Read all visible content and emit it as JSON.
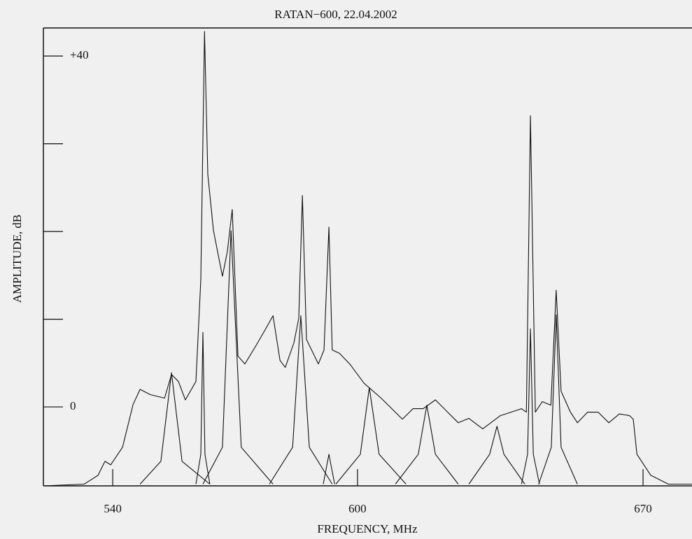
{
  "chart_data": {
    "type": "line",
    "title": "RATAN−600, 22.04.2002",
    "x_label": "FREQUENCY, MHz",
    "y_label": "AMPLITUDE, dB",
    "xlim": [
      523,
      682
    ],
    "ylim": [
      -9,
      43.2
    ],
    "xticks": [
      540,
      600,
      670
    ],
    "yticks": [
      0,
      {
        "value": 10,
        "label": null
      },
      {
        "value": 20,
        "label": null
      },
      {
        "value": 30,
        "label": null
      },
      {
        "value": 40,
        "label": "+40"
      }
    ],
    "color": "#111111",
    "series": [
      {
        "x": [
          523.0,
          533.0,
          536.4,
          538.1,
          539.5,
          542.4,
          545.0,
          546.7,
          549.2,
          552.7,
          554.4,
          556.1,
          557.8,
          560.4,
          561.6,
          562.5,
          563.3,
          564.7,
          566.9,
          568.1,
          569.3,
          570.7,
          572.4,
          575.0,
          577.5,
          579.3,
          581.0,
          582.3,
          584.4,
          585.6,
          586.5,
          587.5,
          590.4,
          591.8,
          593.0,
          593.8,
          595.6,
          598.1,
          601.6,
          605.8,
          611.0,
          613.6,
          616.1,
          619.1,
          622.1,
          624.7,
          627.3,
          630.7,
          635.0,
          640.2,
          641.4,
          642.4,
          643.6,
          645.3,
          647.4,
          648.7,
          649.9,
          652.2,
          653.9,
          656.4,
          659.0,
          661.6,
          664.2,
          666.7,
          667.6,
          668.5,
          671.9,
          676.2,
          682.0
        ],
        "values": [
          -9.0,
          -8.8,
          -7.8,
          -6.2,
          -6.6,
          -4.6,
          0.3,
          2.0,
          1.4,
          1.0,
          3.7,
          2.9,
          0.8,
          2.9,
          14.5,
          42.8,
          26.5,
          20.1,
          14.9,
          17.7,
          22.5,
          5.8,
          4.9,
          6.9,
          8.9,
          10.4,
          5.3,
          4.5,
          7.3,
          10.1,
          24.1,
          7.7,
          4.9,
          6.5,
          20.5,
          6.5,
          6.1,
          4.9,
          2.7,
          1.0,
          -1.4,
          -0.2,
          -0.2,
          0.8,
          -0.6,
          -1.8,
          -1.3,
          -2.5,
          -1.0,
          -0.2,
          -0.6,
          33.2,
          -0.6,
          0.6,
          0.2,
          13.3,
          1.8,
          -0.6,
          -1.8,
          -0.6,
          -0.6,
          -1.8,
          -0.8,
          -1.0,
          -1.4,
          -5.4,
          -7.8,
          -8.8,
          -8.8
        ]
      },
      {
        "x": [
          546.7,
          551.8,
          554.4,
          557.0,
          563.8,
          null,
          560.4,
          561.6,
          562.1,
          562.6,
          563.8,
          null,
          562.1,
          566.9,
          569.0,
          571.5,
          579.3,
          null,
          578.4,
          584.1,
          586.1,
          588.2,
          593.8,
          null,
          591.6,
          593.0,
          594.4,
          null,
          594.7,
          600.7,
          602.9,
          605.3,
          611.9,
          null,
          609.3,
          614.9,
          617.0,
          619.1,
          624.7,
          null,
          627.3,
          632.4,
          634.2,
          635.9,
          641.0,
          null,
          640.2,
          641.7,
          642.4,
          643.1,
          644.6,
          null,
          644.4,
          647.5,
          648.7,
          649.9,
          653.9
        ],
        "values": [
          -8.8,
          -6.2,
          3.9,
          -6.2,
          -8.8,
          null,
          -8.8,
          -5.4,
          8.5,
          -5.4,
          -8.8,
          null,
          -8.8,
          -4.6,
          20.1,
          -4.6,
          -8.8,
          null,
          -8.8,
          -4.6,
          10.4,
          -4.6,
          -8.8,
          null,
          -8.8,
          -5.4,
          -8.8,
          null,
          -8.8,
          -5.4,
          2.2,
          -5.4,
          -8.8,
          null,
          -8.8,
          -5.4,
          0.2,
          -5.4,
          -8.8,
          null,
          -8.8,
          -5.4,
          -2.2,
          -5.4,
          -8.8,
          null,
          -8.8,
          -5.4,
          8.9,
          -5.4,
          -8.8,
          null,
          -8.8,
          -4.6,
          10.5,
          -4.6,
          -8.8
        ]
      }
    ]
  }
}
